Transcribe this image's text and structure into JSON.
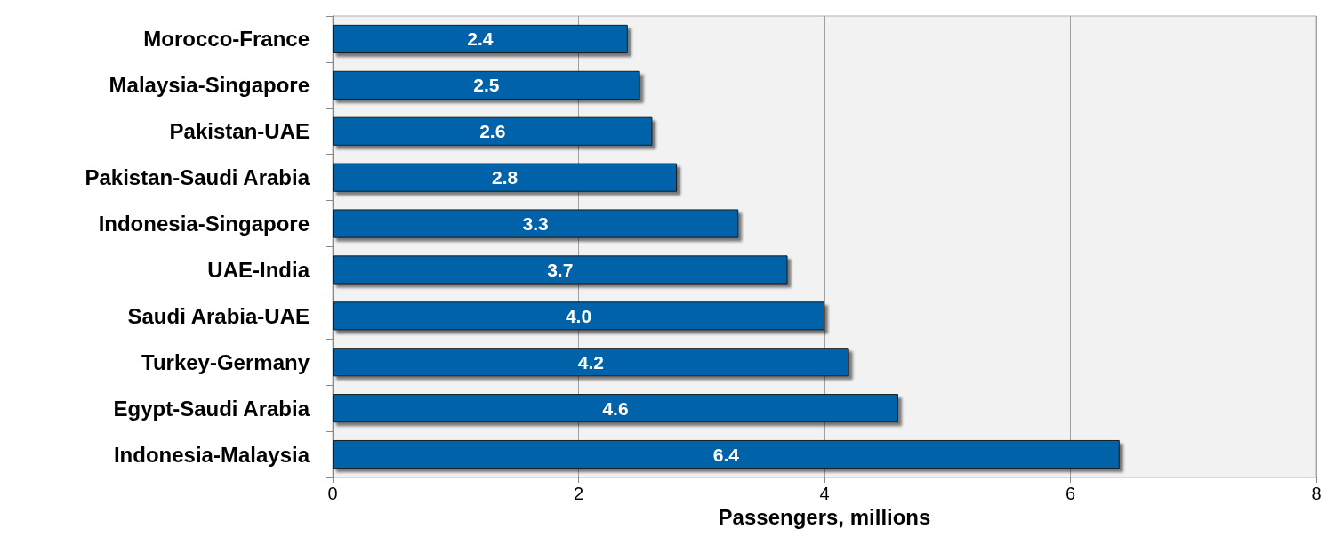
{
  "chart_data": {
    "type": "bar",
    "orientation": "horizontal",
    "xlabel": "Passengers, millions",
    "categories": [
      "Morocco-France",
      "Malaysia-Singapore",
      "Pakistan-UAE",
      "Pakistan-Saudi Arabia",
      "Indonesia-Singapore",
      "UAE-India",
      "Saudi Arabia-UAE",
      "Turkey-Germany",
      "Egypt-Saudi Arabia",
      "Indonesia-Malaysia"
    ],
    "values": [
      2.4,
      2.5,
      2.6,
      2.8,
      3.3,
      3.7,
      4.0,
      4.2,
      4.6,
      6.4
    ],
    "value_labels": [
      "2.4",
      "2.5",
      "2.6",
      "2.8",
      "3.3",
      "3.7",
      "4.0",
      "4.2",
      "4.6",
      "6.4"
    ],
    "color": "#0063a9",
    "xlim": [
      0,
      8
    ],
    "xticks": [
      0,
      2,
      4,
      6,
      8
    ],
    "grid": "x"
  }
}
